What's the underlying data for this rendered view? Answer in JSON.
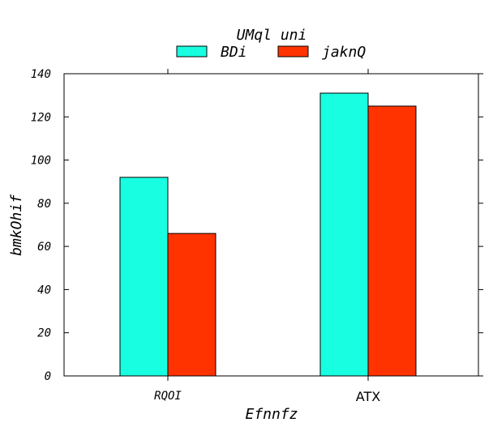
{
  "chart_data": {
    "type": "bar",
    "title": "UMql  uni",
    "xlabel": "Efnnfz",
    "ylabel": "bmkOhif",
    "categories": [
      "RQOI",
      "ATX"
    ],
    "series": [
      {
        "name": "BDi",
        "color": "#17ffe0",
        "values": [
          92,
          131
        ]
      },
      {
        "name": "jaknQ",
        "color": "#ff3300",
        "values": [
          66,
          125
        ]
      }
    ],
    "ylim": [
      0,
      140
    ],
    "yticks": [
      "0",
      "20",
      "40",
      "60",
      "80",
      "100",
      "120",
      "140"
    ],
    "grid": false,
    "legend_position": "top-center"
  }
}
